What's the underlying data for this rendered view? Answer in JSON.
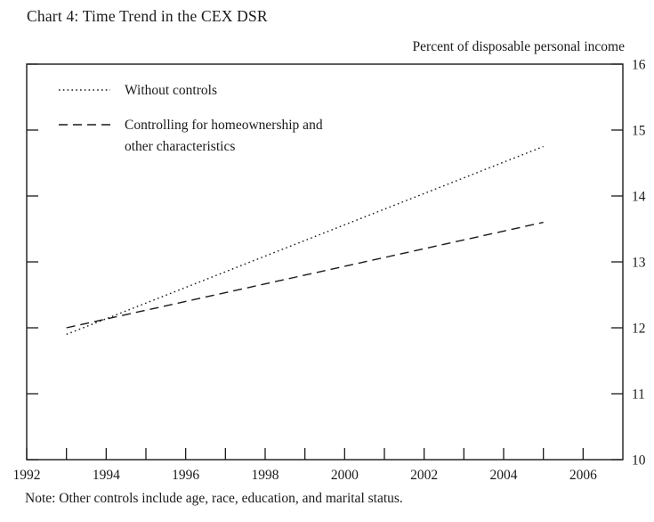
{
  "header": {
    "title": "Chart 4: Time Trend in the CEX DSR",
    "unit_label": "Percent of disposable personal income"
  },
  "note": "Note: Other controls include age, race, education, and marital status.",
  "legend": {
    "items": [
      {
        "style": "dotted",
        "lines": [
          "Without controls"
        ]
      },
      {
        "style": "dashed",
        "lines": [
          "Controlling for homeownership and",
          "other characteristics"
        ]
      }
    ]
  },
  "chart_data": {
    "type": "line",
    "title": "Chart 4: Time Trend in the CEX DSR",
    "ylabel": "Percent of disposable personal income",
    "xlim": [
      1992,
      2007
    ],
    "ylim": [
      10,
      16
    ],
    "x_ticks": [
      1992,
      1993,
      1994,
      1995,
      1996,
      1997,
      1998,
      1999,
      2000,
      2001,
      2002,
      2003,
      2004,
      2005,
      2006
    ],
    "x_tick_labels": [
      "1992",
      "",
      "1994",
      "",
      "1996",
      "",
      "1998",
      "",
      "2000",
      "",
      "2002",
      "",
      "2004",
      "",
      "2006"
    ],
    "y_ticks": [
      10,
      11,
      12,
      13,
      14,
      15,
      16
    ],
    "grid": false,
    "legend_position": "upper-left-inside",
    "series": [
      {
        "name": "Without controls",
        "line_style": "dotted",
        "x": [
          1993,
          2005
        ],
        "y": [
          11.9,
          14.75
        ]
      },
      {
        "name": "Controlling for homeownership and other characteristics",
        "line_style": "dashed",
        "x": [
          1993,
          2005
        ],
        "y": [
          12.0,
          13.6
        ]
      }
    ],
    "note": "Note: Other controls include age, race, education, and marital status."
  }
}
